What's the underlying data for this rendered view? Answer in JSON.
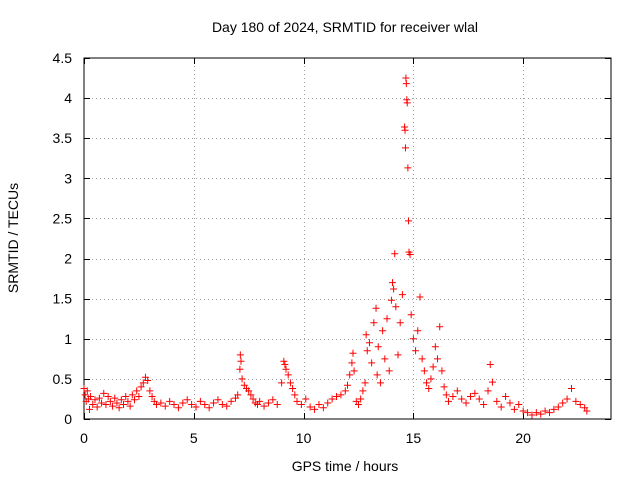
{
  "chart_data": {
    "type": "scatter",
    "title": "Day 180 of 2024, SRMTID for receiver wlal",
    "xlabel": "GPS time / hours",
    "ylabel": "SRMTID / TECUs",
    "xlim": [
      0,
      24
    ],
    "ylim": [
      0,
      4.5
    ],
    "xticks": [
      0,
      5,
      10,
      15,
      20
    ],
    "xtick_labels": [
      "0",
      "5",
      "10",
      "15",
      "20"
    ],
    "yticks": [
      0,
      0.5,
      1,
      1.5,
      2,
      2.5,
      3,
      3.5,
      4,
      4.5
    ],
    "ytick_labels": [
      "0",
      "0.5",
      "1",
      "1.5",
      "2",
      "2.5",
      "3",
      "3.5",
      "4",
      "4.5"
    ],
    "grid": true,
    "marker": "+",
    "color": "#ff0000",
    "series": [
      {
        "name": "SRMTID",
        "points": [
          [
            0.0,
            0.38
          ],
          [
            0.05,
            0.3
          ],
          [
            0.1,
            0.22
          ],
          [
            0.15,
            0.35
          ],
          [
            0.2,
            0.25
          ],
          [
            0.25,
            0.12
          ],
          [
            0.3,
            0.28
          ],
          [
            0.4,
            0.18
          ],
          [
            0.5,
            0.24
          ],
          [
            0.6,
            0.15
          ],
          [
            0.7,
            0.26
          ],
          [
            0.8,
            0.2
          ],
          [
            0.9,
            0.32
          ],
          [
            1.0,
            0.18
          ],
          [
            1.1,
            0.28
          ],
          [
            1.2,
            0.22
          ],
          [
            1.3,
            0.16
          ],
          [
            1.4,
            0.26
          ],
          [
            1.5,
            0.2
          ],
          [
            1.6,
            0.14
          ],
          [
            1.7,
            0.24
          ],
          [
            1.8,
            0.18
          ],
          [
            1.9,
            0.28
          ],
          [
            2.0,
            0.22
          ],
          [
            2.1,
            0.16
          ],
          [
            2.2,
            0.3
          ],
          [
            2.3,
            0.24
          ],
          [
            2.4,
            0.35
          ],
          [
            2.5,
            0.28
          ],
          [
            2.6,
            0.4
          ],
          [
            2.7,
            0.45
          ],
          [
            2.8,
            0.52
          ],
          [
            2.9,
            0.48
          ],
          [
            3.0,
            0.35
          ],
          [
            3.1,
            0.28
          ],
          [
            3.2,
            0.22
          ],
          [
            3.3,
            0.18
          ],
          [
            3.5,
            0.2
          ],
          [
            3.7,
            0.16
          ],
          [
            3.9,
            0.22
          ],
          [
            4.1,
            0.18
          ],
          [
            4.3,
            0.14
          ],
          [
            4.5,
            0.2
          ],
          [
            4.7,
            0.24
          ],
          [
            4.9,
            0.18
          ],
          [
            5.1,
            0.15
          ],
          [
            5.3,
            0.22
          ],
          [
            5.5,
            0.18
          ],
          [
            5.7,
            0.14
          ],
          [
            5.9,
            0.2
          ],
          [
            6.1,
            0.24
          ],
          [
            6.3,
            0.18
          ],
          [
            6.5,
            0.16
          ],
          [
            6.7,
            0.22
          ],
          [
            6.9,
            0.26
          ],
          [
            7.0,
            0.3
          ],
          [
            7.1,
            0.62
          ],
          [
            7.12,
            0.8
          ],
          [
            7.15,
            0.72
          ],
          [
            7.2,
            0.5
          ],
          [
            7.3,
            0.42
          ],
          [
            7.4,
            0.38
          ],
          [
            7.5,
            0.35
          ],
          [
            7.6,
            0.3
          ],
          [
            7.7,
            0.25
          ],
          [
            7.8,
            0.2
          ],
          [
            7.9,
            0.18
          ],
          [
            8.0,
            0.22
          ],
          [
            8.2,
            0.16
          ],
          [
            8.4,
            0.2
          ],
          [
            8.6,
            0.24
          ],
          [
            8.8,
            0.18
          ],
          [
            9.0,
            0.45
          ],
          [
            9.1,
            0.72
          ],
          [
            9.15,
            0.68
          ],
          [
            9.2,
            0.62
          ],
          [
            9.3,
            0.55
          ],
          [
            9.4,
            0.45
          ],
          [
            9.5,
            0.38
          ],
          [
            9.6,
            0.3
          ],
          [
            9.7,
            0.22
          ],
          [
            9.9,
            0.18
          ],
          [
            10.1,
            0.25
          ],
          [
            10.3,
            0.15
          ],
          [
            10.5,
            0.12
          ],
          [
            10.7,
            0.18
          ],
          [
            10.9,
            0.14
          ],
          [
            11.1,
            0.2
          ],
          [
            11.3,
            0.25
          ],
          [
            11.5,
            0.28
          ],
          [
            11.7,
            0.3
          ],
          [
            11.9,
            0.35
          ],
          [
            12.0,
            0.42
          ],
          [
            12.1,
            0.55
          ],
          [
            12.2,
            0.7
          ],
          [
            12.25,
            0.82
          ],
          [
            12.3,
            0.6
          ],
          [
            12.4,
            0.22
          ],
          [
            12.5,
            0.18
          ],
          [
            12.6,
            0.25
          ],
          [
            12.7,
            0.35
          ],
          [
            12.8,
            0.45
          ],
          [
            12.85,
            1.05
          ],
          [
            12.9,
            0.85
          ],
          [
            13.0,
            0.95
          ],
          [
            13.1,
            0.7
          ],
          [
            13.2,
            1.2
          ],
          [
            13.3,
            1.38
          ],
          [
            13.35,
            0.55
          ],
          [
            13.4,
            0.9
          ],
          [
            13.5,
            0.45
          ],
          [
            13.6,
            1.1
          ],
          [
            13.7,
            0.75
          ],
          [
            13.8,
            1.25
          ],
          [
            13.9,
            0.6
          ],
          [
            14.0,
            1.48
          ],
          [
            14.05,
            1.7
          ],
          [
            14.1,
            1.62
          ],
          [
            14.15,
            2.06
          ],
          [
            14.2,
            1.4
          ],
          [
            14.3,
            0.8
          ],
          [
            14.4,
            1.2
          ],
          [
            14.5,
            1.55
          ],
          [
            14.6,
            3.64
          ],
          [
            14.62,
            3.6
          ],
          [
            14.64,
            3.38
          ],
          [
            14.66,
            4.25
          ],
          [
            14.68,
            4.18
          ],
          [
            14.7,
            3.98
          ],
          [
            14.72,
            3.94
          ],
          [
            14.75,
            3.13
          ],
          [
            14.78,
            2.47
          ],
          [
            14.8,
            2.08
          ],
          [
            14.85,
            2.05
          ],
          [
            14.9,
            1.3
          ],
          [
            15.0,
            1.0
          ],
          [
            15.1,
            0.85
          ],
          [
            15.2,
            1.1
          ],
          [
            15.3,
            1.52
          ],
          [
            15.4,
            0.75
          ],
          [
            15.5,
            0.6
          ],
          [
            15.6,
            0.45
          ],
          [
            15.7,
            0.38
          ],
          [
            15.8,
            0.5
          ],
          [
            15.9,
            0.65
          ],
          [
            16.0,
            0.9
          ],
          [
            16.1,
            0.75
          ],
          [
            16.2,
            1.15
          ],
          [
            16.3,
            0.6
          ],
          [
            16.4,
            0.4
          ],
          [
            16.5,
            0.3
          ],
          [
            16.6,
            0.22
          ],
          [
            16.8,
            0.28
          ],
          [
            17.0,
            0.35
          ],
          [
            17.2,
            0.25
          ],
          [
            17.4,
            0.2
          ],
          [
            17.6,
            0.28
          ],
          [
            17.8,
            0.32
          ],
          [
            18.0,
            0.25
          ],
          [
            18.2,
            0.18
          ],
          [
            18.4,
            0.35
          ],
          [
            18.5,
            0.68
          ],
          [
            18.6,
            0.46
          ],
          [
            18.8,
            0.22
          ],
          [
            19.0,
            0.15
          ],
          [
            19.2,
            0.28
          ],
          [
            19.4,
            0.2
          ],
          [
            19.6,
            0.12
          ],
          [
            19.8,
            0.18
          ],
          [
            20.0,
            0.1
          ],
          [
            20.2,
            0.08
          ],
          [
            20.4,
            0.05
          ],
          [
            20.6,
            0.08
          ],
          [
            20.8,
            0.06
          ],
          [
            21.0,
            0.1
          ],
          [
            21.2,
            0.08
          ],
          [
            21.4,
            0.12
          ],
          [
            21.6,
            0.15
          ],
          [
            21.8,
            0.2
          ],
          [
            22.0,
            0.25
          ],
          [
            22.2,
            0.38
          ],
          [
            22.4,
            0.22
          ],
          [
            22.6,
            0.18
          ],
          [
            22.8,
            0.14
          ],
          [
            22.9,
            0.1
          ]
        ]
      }
    ]
  }
}
